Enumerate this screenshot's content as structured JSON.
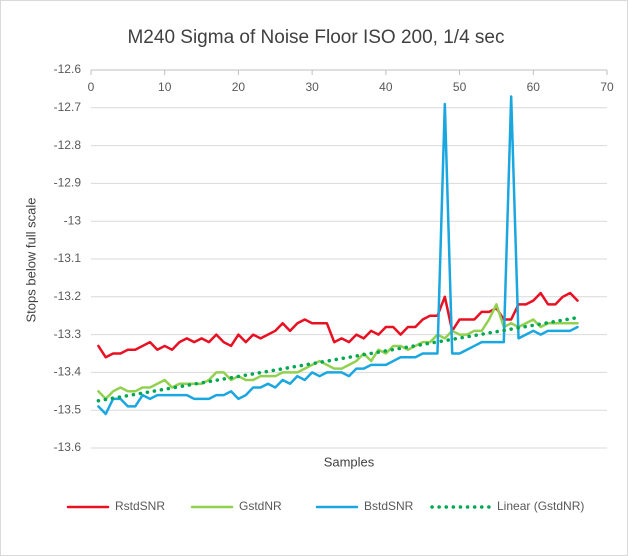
{
  "chart_data": {
    "type": "line",
    "title": "M240 Sigma of Noise Floor ISO 200, 1/4 sec",
    "x_label": "Samples",
    "y_label": "Stops below full scale",
    "x": [
      1,
      2,
      3,
      4,
      5,
      6,
      7,
      8,
      9,
      10,
      11,
      12,
      13,
      14,
      15,
      16,
      17,
      18,
      19,
      20,
      21,
      22,
      23,
      24,
      25,
      26,
      27,
      28,
      29,
      30,
      31,
      32,
      33,
      34,
      35,
      36,
      37,
      38,
      39,
      40,
      41,
      42,
      43,
      44,
      45,
      46,
      47,
      48,
      49,
      50,
      51,
      52,
      53,
      54,
      55,
      56,
      57,
      58,
      59,
      60,
      61,
      62,
      63,
      64,
      65,
      66
    ],
    "series": [
      {
        "name": "RstdSNR",
        "color": "#e81123",
        "style": "solid",
        "values": [
          -13.33,
          -13.36,
          -13.35,
          -13.35,
          -13.34,
          -13.34,
          -13.33,
          -13.32,
          -13.34,
          -13.33,
          -13.34,
          -13.32,
          -13.31,
          -13.32,
          -13.31,
          -13.32,
          -13.3,
          -13.32,
          -13.33,
          -13.3,
          -13.32,
          -13.3,
          -13.31,
          -13.3,
          -13.29,
          -13.27,
          -13.29,
          -13.27,
          -13.26,
          -13.27,
          -13.27,
          -13.27,
          -13.32,
          -13.31,
          -13.32,
          -13.3,
          -13.31,
          -13.29,
          -13.3,
          -13.28,
          -13.28,
          -13.3,
          -13.28,
          -13.28,
          -13.26,
          -13.25,
          -13.25,
          -13.2,
          -13.29,
          -13.26,
          -13.26,
          -13.26,
          -13.24,
          -13.24,
          -13.23,
          -13.26,
          -13.26,
          -13.22,
          -13.22,
          -13.21,
          -13.19,
          -13.22,
          -13.22,
          -13.2,
          -13.19,
          -13.21
        ]
      },
      {
        "name": "GstdNR",
        "color": "#92d050",
        "style": "solid",
        "values": [
          -13.45,
          -13.47,
          -13.45,
          -13.44,
          -13.45,
          -13.45,
          -13.44,
          -13.44,
          -13.43,
          -13.42,
          -13.44,
          -13.43,
          -13.43,
          -13.43,
          -13.43,
          -13.42,
          -13.4,
          -13.4,
          -13.42,
          -13.41,
          -13.42,
          -13.42,
          -13.41,
          -13.41,
          -13.41,
          -13.4,
          -13.4,
          -13.4,
          -13.39,
          -13.38,
          -13.37,
          -13.38,
          -13.39,
          -13.39,
          -13.38,
          -13.37,
          -13.35,
          -13.37,
          -13.34,
          -13.35,
          -13.33,
          -13.33,
          -13.34,
          -13.33,
          -13.32,
          -13.32,
          -13.3,
          -13.31,
          -13.29,
          -13.3,
          -13.3,
          -13.29,
          -13.29,
          -13.26,
          -13.22,
          -13.28,
          -13.27,
          -13.28,
          -13.27,
          -13.26,
          -13.28,
          -13.27,
          -13.27,
          -13.27,
          -13.27,
          -13.27
        ]
      },
      {
        "name": "BstdSNR",
        "color": "#1aa7e0",
        "style": "solid",
        "values": [
          -13.49,
          -13.51,
          -13.47,
          -13.47,
          -13.49,
          -13.49,
          -13.46,
          -13.47,
          -13.46,
          -13.46,
          -13.46,
          -13.46,
          -13.46,
          -13.47,
          -13.47,
          -13.47,
          -13.46,
          -13.46,
          -13.45,
          -13.47,
          -13.46,
          -13.44,
          -13.44,
          -13.43,
          -13.44,
          -13.42,
          -13.43,
          -13.41,
          -13.42,
          -13.4,
          -13.41,
          -13.4,
          -13.4,
          -13.4,
          -13.41,
          -13.39,
          -13.39,
          -13.38,
          -13.38,
          -13.38,
          -13.37,
          -13.36,
          -13.36,
          -13.36,
          -13.35,
          -13.35,
          -13.35,
          -12.69,
          -13.35,
          -13.35,
          -13.34,
          -13.33,
          -13.32,
          -13.32,
          -13.32,
          -13.32,
          -12.67,
          -13.31,
          -13.3,
          -13.29,
          -13.3,
          -13.29,
          -13.29,
          -13.29,
          -13.29,
          -13.28
        ]
      },
      {
        "name": "Linear (GstdNR)",
        "color": "#00a651",
        "style": "dotted",
        "x": [
          1,
          66
        ],
        "values": [
          -13.475,
          -13.255
        ]
      }
    ],
    "xlim": [
      0,
      70
    ],
    "xticks": [
      0,
      10,
      20,
      30,
      40,
      50,
      60,
      70
    ],
    "ylim": [
      -13.6,
      -12.6
    ],
    "yticks": [
      -12.6,
      -12.7,
      -12.8,
      -12.9,
      -13,
      -13.1,
      -13.2,
      -13.3,
      -13.4,
      -13.5,
      -13.6
    ],
    "grid": true,
    "legend": "bottom"
  }
}
